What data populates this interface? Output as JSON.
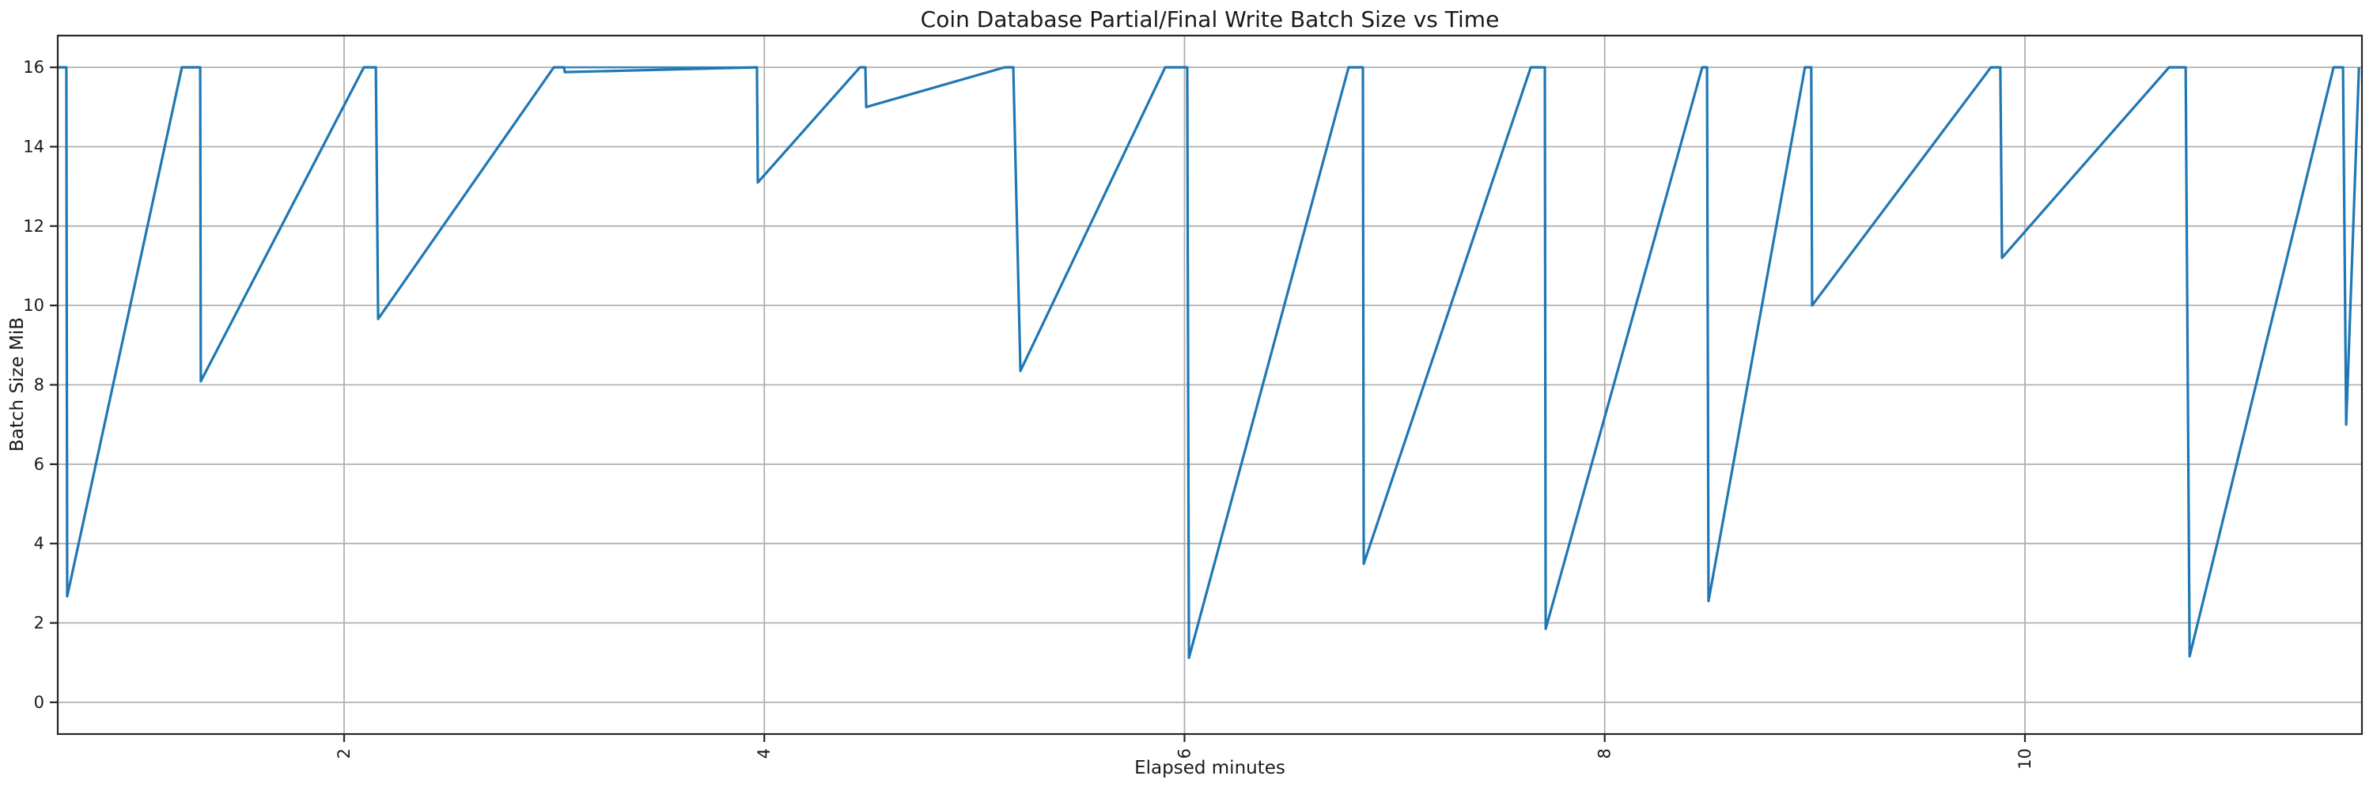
{
  "page": {
    "background": "#ffffff"
  },
  "chart_data": {
    "type": "line",
    "title": "Coin Database Partial/Final Write Batch Size vs Time",
    "xlabel": "Elapsed minutes",
    "ylabel": "Batch Size MiB",
    "xlim": [
      0.637,
      11.604
    ],
    "ylim": [
      -0.8,
      16.8
    ],
    "x_ticks": [
      2,
      4,
      6,
      8,
      10
    ],
    "y_ticks": [
      0,
      2,
      4,
      6,
      8,
      10,
      12,
      14,
      16
    ],
    "x_tick_rotation_deg": 90,
    "grid": true,
    "legend": "none",
    "line_color": "#1f77b4",
    "grid_color": "#b0b0b0",
    "axis_color": "#262626",
    "text_color": "#1a1a1a",
    "series": [
      {
        "name": "batch_size_mib",
        "points": [
          [
            0.637,
            16
          ],
          [
            0.678,
            16
          ],
          [
            0.682,
            2.67
          ],
          [
            1.228,
            16
          ],
          [
            1.315,
            16
          ],
          [
            1.318,
            8.09
          ],
          [
            2.094,
            16
          ],
          [
            2.151,
            16
          ],
          [
            2.162,
            9.66
          ],
          [
            2.998,
            16
          ],
          [
            3.047,
            16
          ],
          [
            3.05,
            15.88
          ],
          [
            3.965,
            16
          ],
          [
            3.969,
            13.1
          ],
          [
            4.455,
            16
          ],
          [
            4.481,
            16
          ],
          [
            4.485,
            15.0
          ],
          [
            5.144,
            16
          ],
          [
            5.185,
            16
          ],
          [
            5.219,
            8.35
          ],
          [
            5.908,
            16
          ],
          [
            6.013,
            16
          ],
          [
            6.021,
            1.12
          ],
          [
            6.781,
            16
          ],
          [
            6.849,
            16
          ],
          [
            6.853,
            3.49
          ],
          [
            7.648,
            16
          ],
          [
            7.715,
            16
          ],
          [
            7.719,
            1.85
          ],
          [
            8.464,
            16
          ],
          [
            8.487,
            16
          ],
          [
            8.494,
            2.55
          ],
          [
            8.953,
            16
          ],
          [
            8.983,
            16
          ],
          [
            8.987,
            10.0
          ],
          [
            9.838,
            16
          ],
          [
            9.883,
            16
          ],
          [
            9.891,
            11.2
          ],
          [
            10.686,
            16
          ],
          [
            10.765,
            16
          ],
          [
            10.784,
            1.16
          ],
          [
            11.469,
            16
          ],
          [
            11.514,
            16
          ],
          [
            11.529,
            7.0
          ],
          [
            11.59,
            16
          ]
        ]
      }
    ],
    "overlay_segments_at_16": [
      [
        [
          3.05,
          16
        ],
        [
          3.965,
          16
        ]
      ]
    ]
  }
}
